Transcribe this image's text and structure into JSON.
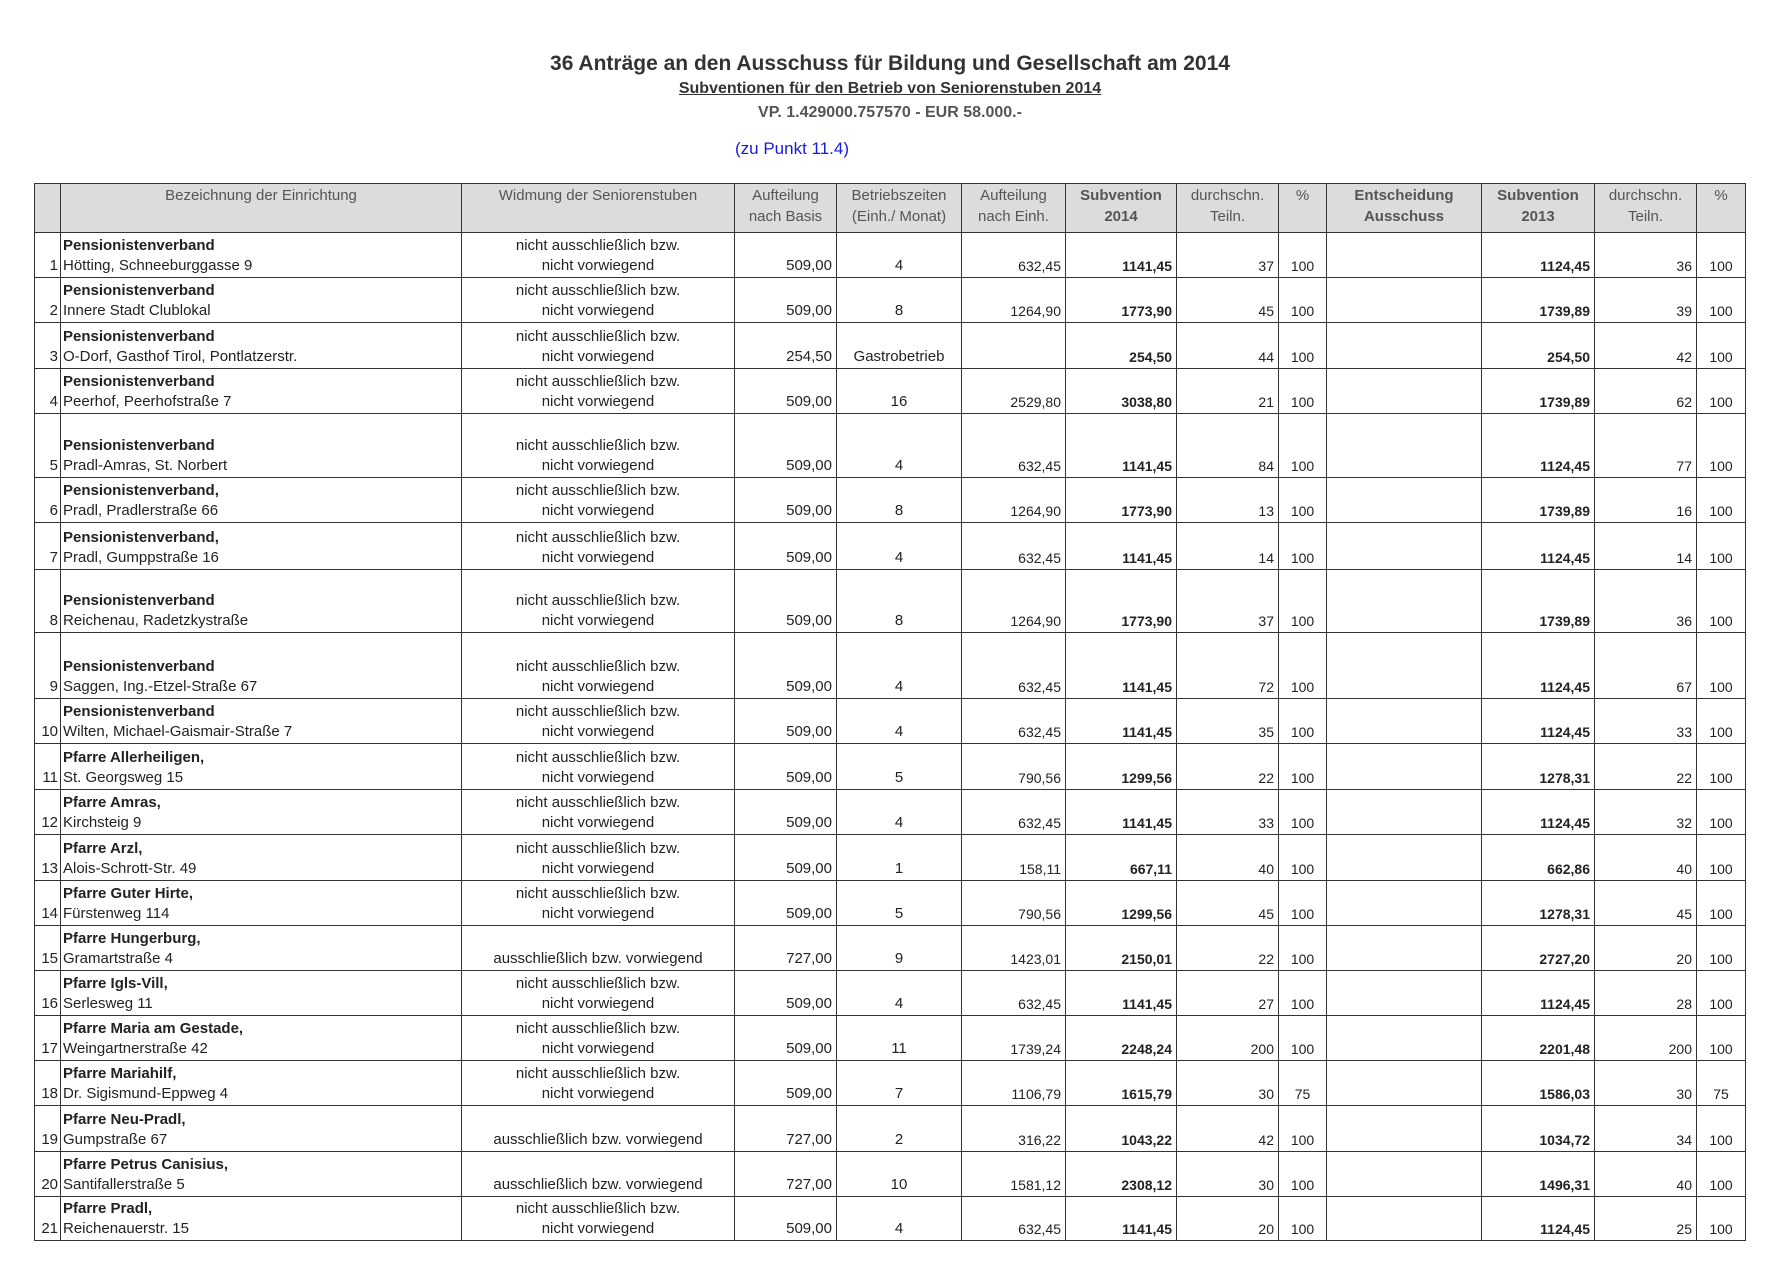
{
  "header": {
    "title": "36 Anträge an den Ausschuss für Bildung und Gesellschaft am  2014",
    "subtitle": "Subventionen für den Betrieb von Seniorenstuben 2014",
    "budget_line": "VP. 1.429000.757570 - EUR 58.000.-",
    "reference": "(zu Punkt 11.4)"
  },
  "colors": {
    "header_bg": "#dcdcdc",
    "reference_text": "#1a1adc",
    "grid": "#333333"
  },
  "table": {
    "columns": [
      [
        "",
        ""
      ],
      [
        "Bezeichnung der Einrichtung",
        ""
      ],
      [
        "Widmung der Seniorenstuben",
        ""
      ],
      [
        "Aufteilung",
        "nach Basis"
      ],
      [
        "Betriebszeiten",
        "(Einh./ Monat)"
      ],
      [
        "Aufteilung",
        "nach Einh."
      ],
      [
        "Subvention",
        "2014"
      ],
      [
        "durchschn.",
        "Teiln."
      ],
      [
        "",
        "%"
      ],
      [
        "Entscheidung",
        "Ausschuss"
      ],
      [
        "Subvention",
        "2013"
      ],
      [
        "durchschn.",
        "Teiln."
      ],
      [
        "",
        "%"
      ]
    ],
    "rows": [
      {
        "nr": "1",
        "name": "Pensionistenverband",
        "address": "Hötting, Schneeburggasse 9",
        "widmung": [
          "nicht ausschließlich bzw.",
          "nicht vorwiegend"
        ],
        "basis": "509,00",
        "einh": "4",
        "aufteilung": "632,45",
        "sub2014": "1141,45",
        "teiln2014": "37",
        "pct2014": "100",
        "entscheidung": "",
        "sub2013": "1124,45",
        "teiln2013": "36",
        "pct2013": "100"
      },
      {
        "nr": "2",
        "name": "Pensionistenverband",
        "address": "Innere Stadt Clublokal",
        "widmung": [
          "nicht ausschließlich bzw.",
          "nicht vorwiegend"
        ],
        "basis": "509,00",
        "einh": "8",
        "aufteilung": "1264,90",
        "sub2014": "1773,90",
        "teiln2014": "45",
        "pct2014": "100",
        "entscheidung": "",
        "sub2013": "1739,89",
        "teiln2013": "39",
        "pct2013": "100"
      },
      {
        "nr": "3",
        "name": "Pensionistenverband",
        "address": "O-Dorf, Gasthof Tirol, Pontlatzerstr.",
        "widmung": [
          "nicht ausschließlich bzw.",
          "nicht vorwiegend"
        ],
        "basis": "254,50",
        "einh": "Gastrobetrieb",
        "aufteilung": "",
        "sub2014": "254,50",
        "teiln2014": "44",
        "pct2014": "100",
        "entscheidung": "",
        "sub2013": "254,50",
        "teiln2013": "42",
        "pct2013": "100"
      },
      {
        "nr": "4",
        "name": "Pensionistenverband",
        "address": "Peerhof, Peerhofstraße 7",
        "widmung": [
          "nicht ausschließlich bzw.",
          "nicht vorwiegend"
        ],
        "basis": "509,00",
        "einh": "16",
        "aufteilung": "2529,80",
        "sub2014": "3038,80",
        "teiln2014": "21",
        "pct2014": "100",
        "entscheidung": "",
        "sub2013": "1739,89",
        "teiln2013": "62",
        "pct2013": "100"
      },
      {
        "nr": "5",
        "name": "Pensionistenverband",
        "address": "Pradl-Amras, St. Norbert",
        "widmung": [
          "nicht ausschließlich bzw.",
          "nicht vorwiegend"
        ],
        "basis": "509,00",
        "einh": "4",
        "aufteilung": "632,45",
        "sub2014": "1141,45",
        "teiln2014": "84",
        "pct2014": "100",
        "entscheidung": "",
        "sub2013": "1124,45",
        "teiln2013": "77",
        "pct2013": "100"
      },
      {
        "nr": "6",
        "name": "Pensionistenverband,",
        "address": "Pradl, Pradlerstraße 66",
        "widmung": [
          "nicht ausschließlich bzw.",
          "nicht vorwiegend"
        ],
        "basis": "509,00",
        "einh": "8",
        "aufteilung": "1264,90",
        "sub2014": "1773,90",
        "teiln2014": "13",
        "pct2014": "100",
        "entscheidung": "",
        "sub2013": "1739,89",
        "teiln2013": "16",
        "pct2013": "100"
      },
      {
        "nr": "7",
        "name": "Pensionistenverband,",
        "address": "Pradl, Gumppstraße 16",
        "widmung": [
          "nicht ausschließlich bzw.",
          "nicht vorwiegend"
        ],
        "basis": "509,00",
        "einh": "4",
        "aufteilung": "632,45",
        "sub2014": "1141,45",
        "teiln2014": "14",
        "pct2014": "100",
        "entscheidung": "",
        "sub2013": "1124,45",
        "teiln2013": "14",
        "pct2013": "100"
      },
      {
        "nr": "8",
        "name": "Pensionistenverband",
        "address": "Reichenau, Radetzkystraße",
        "widmung": [
          "nicht ausschließlich bzw.",
          "nicht vorwiegend"
        ],
        "basis": "509,00",
        "einh": "8",
        "aufteilung": "1264,90",
        "sub2014": "1773,90",
        "teiln2014": "37",
        "pct2014": "100",
        "entscheidung": "",
        "sub2013": "1739,89",
        "teiln2013": "36",
        "pct2013": "100"
      },
      {
        "nr": "9",
        "name": "Pensionistenverband",
        "address": "Saggen, Ing.-Etzel-Straße 67",
        "widmung": [
          "nicht ausschließlich bzw.",
          "nicht vorwiegend"
        ],
        "basis": "509,00",
        "einh": "4",
        "aufteilung": "632,45",
        "sub2014": "1141,45",
        "teiln2014": "72",
        "pct2014": "100",
        "entscheidung": "",
        "sub2013": "1124,45",
        "teiln2013": "67",
        "pct2013": "100"
      },
      {
        "nr": "10",
        "name": "Pensionistenverband",
        "address": "Wilten, Michael-Gaismair-Straße 7",
        "widmung": [
          "nicht ausschließlich bzw.",
          "nicht vorwiegend"
        ],
        "basis": "509,00",
        "einh": "4",
        "aufteilung": "632,45",
        "sub2014": "1141,45",
        "teiln2014": "35",
        "pct2014": "100",
        "entscheidung": "",
        "sub2013": "1124,45",
        "teiln2013": "33",
        "pct2013": "100"
      },
      {
        "nr": "11",
        "name": "Pfarre Allerheiligen,",
        "address": "St. Georgsweg 15",
        "widmung": [
          "nicht ausschließlich bzw.",
          "nicht vorwiegend"
        ],
        "basis": "509,00",
        "einh": "5",
        "aufteilung": "790,56",
        "sub2014": "1299,56",
        "teiln2014": "22",
        "pct2014": "100",
        "entscheidung": "",
        "sub2013": "1278,31",
        "teiln2013": "22",
        "pct2013": "100"
      },
      {
        "nr": "12",
        "name": "Pfarre Amras,",
        "address": "Kirchsteig 9",
        "widmung": [
          "nicht ausschließlich bzw.",
          "nicht vorwiegend"
        ],
        "basis": "509,00",
        "einh": "4",
        "aufteilung": "632,45",
        "sub2014": "1141,45",
        "teiln2014": "33",
        "pct2014": "100",
        "entscheidung": "",
        "sub2013": "1124,45",
        "teiln2013": "32",
        "pct2013": "100"
      },
      {
        "nr": "13",
        "name": "Pfarre Arzl,",
        "address": " Alois-Schrott-Str. 49",
        "widmung": [
          "nicht ausschließlich bzw.",
          "nicht vorwiegend"
        ],
        "basis": "509,00",
        "einh": "1",
        "aufteilung": "158,11",
        "sub2014": "667,11",
        "teiln2014": "40",
        "pct2014": "100",
        "entscheidung": "",
        "sub2013": "662,86",
        "teiln2013": "40",
        "pct2013": "100"
      },
      {
        "nr": "14",
        "name": "Pfarre Guter Hirte,",
        "address": "Fürstenweg 114",
        "widmung": [
          "nicht ausschließlich bzw.",
          "nicht vorwiegend"
        ],
        "basis": "509,00",
        "einh": "5",
        "aufteilung": "790,56",
        "sub2014": "1299,56",
        "teiln2014": "45",
        "pct2014": "100",
        "entscheidung": "",
        "sub2013": "1278,31",
        "teiln2013": "45",
        "pct2013": "100"
      },
      {
        "nr": "15",
        "name": "Pfarre Hungerburg,",
        "address": "Gramartstraße 4",
        "widmung": [
          "ausschließlich bzw. vorwiegend"
        ],
        "basis": "727,00",
        "einh": "9",
        "aufteilung": "1423,01",
        "sub2014": "2150,01",
        "teiln2014": "22",
        "pct2014": "100",
        "entscheidung": "",
        "sub2013": "2727,20",
        "teiln2013": "20",
        "pct2013": "100"
      },
      {
        "nr": "16",
        "name": "Pfarre Igls-Vill,",
        "address": "Serlesweg 11",
        "widmung": [
          "nicht ausschließlich bzw.",
          "nicht vorwiegend"
        ],
        "basis": "509,00",
        "einh": "4",
        "aufteilung": "632,45",
        "sub2014": "1141,45",
        "teiln2014": "27",
        "pct2014": "100",
        "entscheidung": "",
        "sub2013": "1124,45",
        "teiln2013": "28",
        "pct2013": "100"
      },
      {
        "nr": "17",
        "name": "Pfarre Maria am Gestade,",
        "address": "Weingartnerstraße 42",
        "widmung": [
          "nicht ausschließlich bzw.",
          "nicht vorwiegend"
        ],
        "basis": "509,00",
        "einh": "11",
        "aufteilung": "1739,24",
        "sub2014": "2248,24",
        "teiln2014": "200",
        "pct2014": "100",
        "entscheidung": "",
        "sub2013": "2201,48",
        "teiln2013": "200",
        "pct2013": "100"
      },
      {
        "nr": "18",
        "name": "Pfarre Mariahilf,",
        "address": "Dr. Sigismund-Eppweg 4",
        "widmung": [
          "nicht ausschließlich bzw.",
          "nicht vorwiegend"
        ],
        "basis": "509,00",
        "einh": "7",
        "aufteilung": "1106,79",
        "sub2014": "1615,79",
        "teiln2014": "30",
        "pct2014": "75",
        "entscheidung": "",
        "sub2013": "1586,03",
        "teiln2013": "30",
        "pct2013": "75"
      },
      {
        "nr": "19",
        "name": "Pfarre Neu-Pradl,",
        "address": "Gumpstraße 67",
        "widmung": [
          "ausschließlich bzw. vorwiegend"
        ],
        "basis": "727,00",
        "einh": "2",
        "aufteilung": "316,22",
        "sub2014": "1043,22",
        "teiln2014": "42",
        "pct2014": "100",
        "entscheidung": "",
        "sub2013": "1034,72",
        "teiln2013": "34",
        "pct2013": "100"
      },
      {
        "nr": "20",
        "name": "Pfarre Petrus Canisius,",
        "address": "Santifallerstraße 5",
        "widmung": [
          "ausschließlich bzw. vorwiegend"
        ],
        "basis": "727,00",
        "einh": "10",
        "aufteilung": "1581,12",
        "sub2014": "2308,12",
        "teiln2014": "30",
        "pct2014": "100",
        "entscheidung": "",
        "sub2013": "1496,31",
        "teiln2013": "40",
        "pct2013": "100"
      },
      {
        "nr": "21",
        "name": "Pfarre Pradl,",
        "address": "Reichenauerstr. 15",
        "widmung": [
          "nicht ausschließlich bzw.",
          "nicht vorwiegend"
        ],
        "basis": "509,00",
        "einh": "4",
        "aufteilung": "632,45",
        "sub2014": "1141,45",
        "teiln2014": "20",
        "pct2014": "100",
        "entscheidung": "",
        "sub2013": "1124,45",
        "teiln2013": "25",
        "pct2013": "100"
      }
    ]
  }
}
